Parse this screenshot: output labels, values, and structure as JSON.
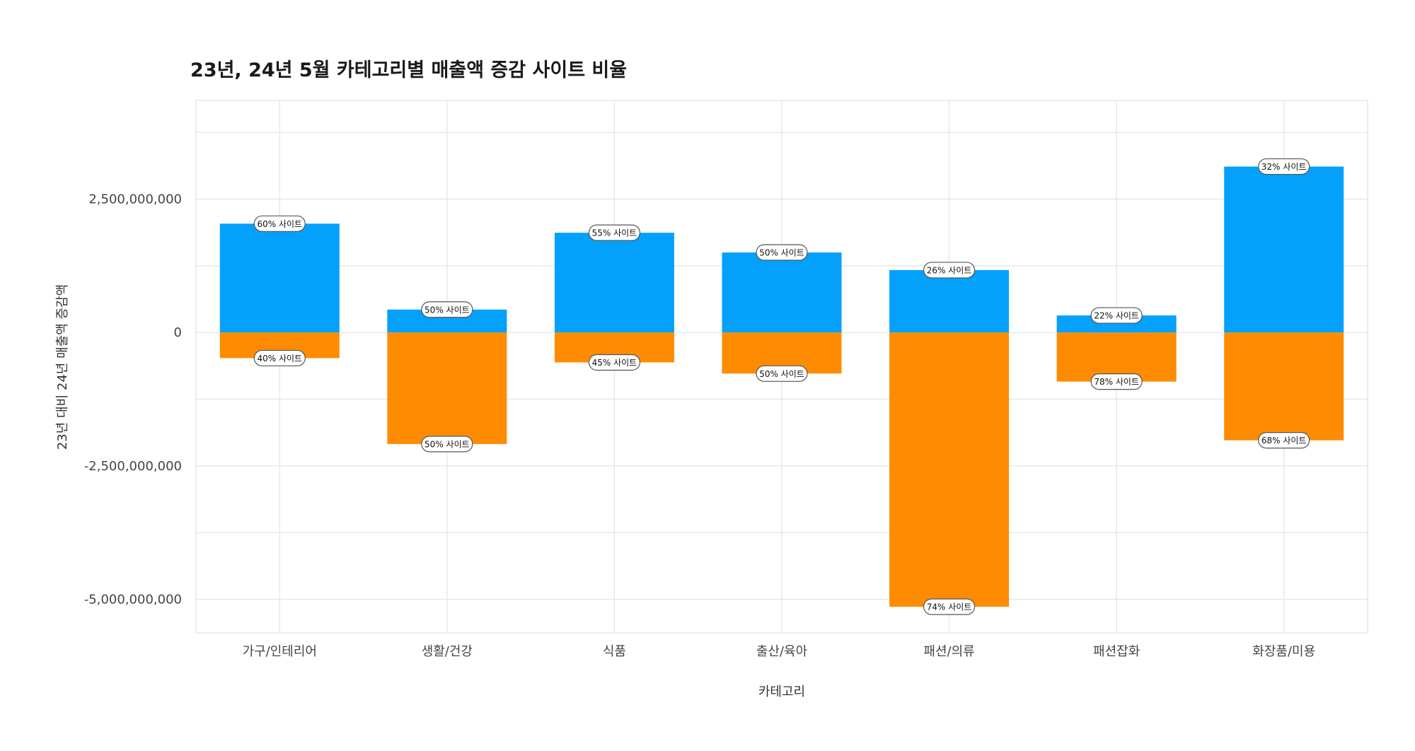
{
  "chart_data": {
    "type": "bar",
    "stacked": true,
    "title": "23년, 24년 5월 카테고리별 매출액 증감 사이트 비율",
    "xlabel": "카테고리",
    "ylabel": "23년 대비 24년 매출액 증감액",
    "ylim": [
      -5630000000,
      4350000000
    ],
    "yticks": [
      2500000000,
      0,
      -2500000000,
      -5000000000
    ],
    "ytick_labels": [
      "2,500,000,000",
      "0",
      "-2,500,000,000",
      "-5,000,000,000"
    ],
    "grid": true,
    "categories": [
      "가구/인테리어",
      "생활/건강",
      "식품",
      "출산/육아",
      "패션/의류",
      "패션잡화",
      "화장품/미용"
    ],
    "series": [
      {
        "color": "#03a1fc",
        "values": [
          2040000000,
          430000000,
          1870000000,
          1500000000,
          1170000000,
          320000000,
          3110000000
        ],
        "labels": [
          "60% 사이트",
          "50% 사이트",
          "55% 사이트",
          "50% 사이트",
          "26% 사이트",
          "22% 사이트",
          "32% 사이트"
        ]
      },
      {
        "color": "#ff8c00",
        "values": [
          -480000000,
          -2090000000,
          -560000000,
          -770000000,
          -5140000000,
          -920000000,
          -2020000000
        ],
        "labels": [
          "40% 사이트",
          "50% 사이트",
          "45% 사이트",
          "50% 사이트",
          "74% 사이트",
          "78% 사이트",
          "68% 사이트"
        ]
      }
    ]
  }
}
